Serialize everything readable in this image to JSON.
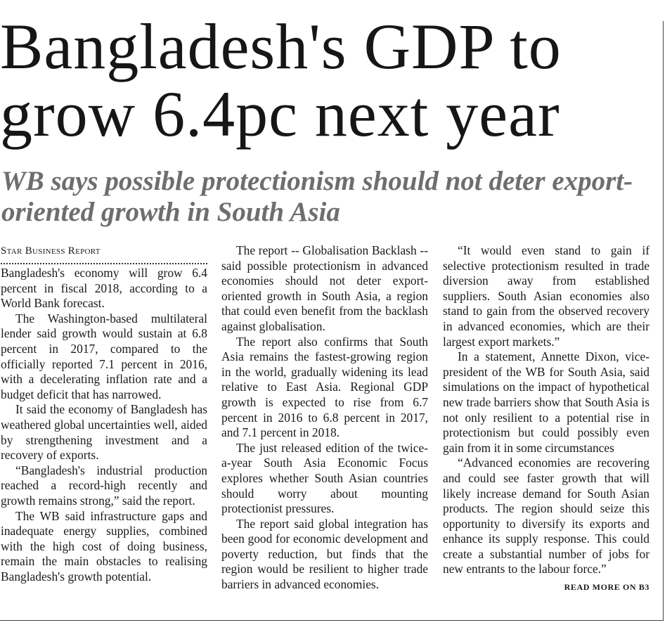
{
  "article": {
    "headline": "Bangladesh's GDP to grow 6.4pc next year",
    "subhead": "WB says possible protectionism should not deter export-oriented growth in South Asia",
    "byline": "Star Business Report",
    "columns": [
      [
        "Bangladesh's economy will grow 6.4 percent in fiscal 2018, according to a World Bank forecast.",
        "The Washington-based multilateral lender said growth would sustain at 6.8 percent in 2017, compared to the officially reported 7.1 percent in 2016, with a decelerating inflation rate and a budget deficit that has narrowed.",
        "It said the economy of Bangladesh has weathered global uncertainties well, aided by strengthening investment and a recovery of exports.",
        "“Bangladesh's industrial production reached a record-high recently and growth remains strong,” said the report.",
        "The WB said infrastructure gaps and inadequate energy supplies, combined with the high cost of doing business, remain the main obstacles to realising Bangladesh's growth potential."
      ],
      [
        "The report -- Globalisation Backlash -- said possible protectionism in advanced economies should not deter export-oriented growth in South Asia, a region that could even benefit from the backlash against globalisation.",
        "The report also confirms that South Asia remains the fastest-growing region in the world, gradually widening its lead relative to East Asia. Regional GDP growth is expected to rise from 6.7 percent in 2016 to 6.8 percent in 2017, and 7.1 percent in 2018.",
        "The just released edition of the twice-a-year South Asia Economic Focus explores whether South Asian countries should worry about mounting protectionist pressures.",
        "The report said global integration has been good for economic development and poverty reduction, but finds that the region would be resilient to higher trade barriers in advanced economies."
      ],
      [
        "“It would even stand to gain if selective protectionism resulted in trade diversion away from established suppliers. South Asian economies also stand to gain from the observed recovery in advanced economies, which are their largest export markets.”",
        "In a statement, Annette Dixon, vice-president of the WB for South Asia, said simulations on the impact of hypothetical new trade barriers show that South Asia is not only resilient to a potential rise in protectionism but could possibly even gain from it in some circumstances",
        "“Advanced economies are recovering and could see faster growth that will likely increase demand for South Asian products. The region should seize this opportunity to diversify its exports and enhance its supply response. This could create a substantial number of jobs for new entrants to the labour force.”"
      ]
    ],
    "read_more": "READ MORE ON B3"
  }
}
